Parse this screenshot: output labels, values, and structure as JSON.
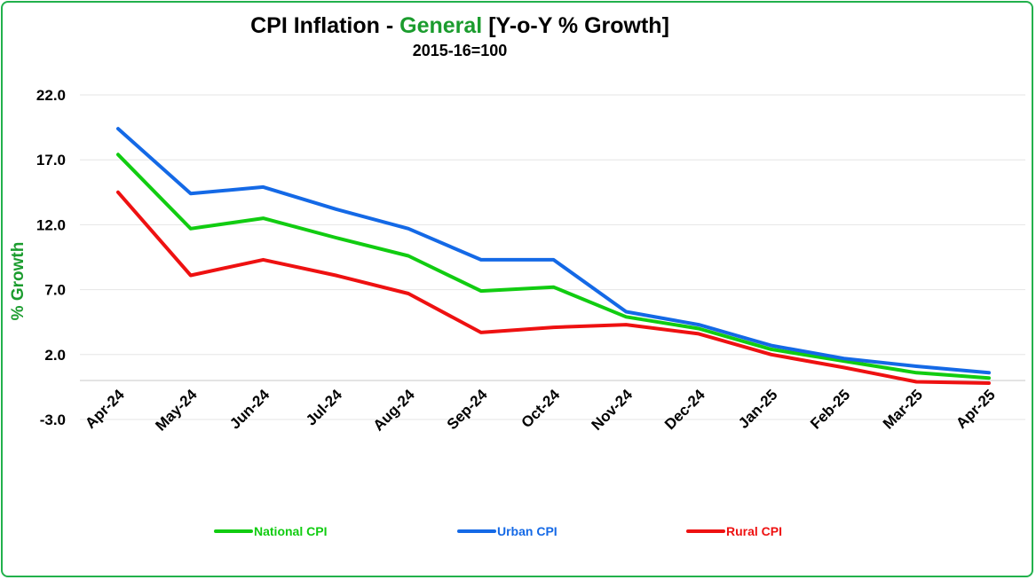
{
  "chart_data": {
    "type": "line",
    "title_parts": {
      "prefix": "CPI Inflation - ",
      "highlight": "General",
      "suffix": " [Y-o-Y % Growth]"
    },
    "subtitle": "2015-16=100",
    "ylabel": "% Growth",
    "ylim": [
      -3.0,
      22.0
    ],
    "yticks": [
      "22.0",
      "17.0",
      "12.0",
      "7.0",
      "2.0",
      "-3.0"
    ],
    "ytick_values": [
      22,
      17,
      12,
      7,
      2,
      -3
    ],
    "categories": [
      "Apr-24",
      "May-24",
      "Jun-24",
      "Jul-24",
      "Aug-24",
      "Sep-24",
      "Oct-24",
      "Nov-24",
      "Dec-24",
      "Jan-25",
      "Feb-25",
      "Mar-25",
      "Apr-25"
    ],
    "grid": true,
    "legend_position": "bottom",
    "series": [
      {
        "name": "National CPI",
        "color": "#11cc11",
        "values": [
          17.4,
          11.7,
          12.5,
          11.0,
          9.6,
          6.9,
          7.2,
          4.9,
          4.0,
          2.4,
          1.5,
          0.6,
          0.2
        ]
      },
      {
        "name": "Urban CPI",
        "color": "#1469e6",
        "values": [
          19.4,
          14.4,
          14.9,
          13.2,
          11.7,
          9.3,
          9.3,
          5.3,
          4.3,
          2.7,
          1.7,
          1.1,
          0.6
        ]
      },
      {
        "name": "Rural CPI",
        "color": "#ee1111",
        "values": [
          14.5,
          8.1,
          9.3,
          8.1,
          6.7,
          3.7,
          4.1,
          4.3,
          3.6,
          2.0,
          1.0,
          -0.1,
          -0.2
        ]
      }
    ]
  },
  "colors": {
    "frame_border": "#22b14c",
    "highlight": "#1b9c2e",
    "grid": "#e6e6e6"
  }
}
